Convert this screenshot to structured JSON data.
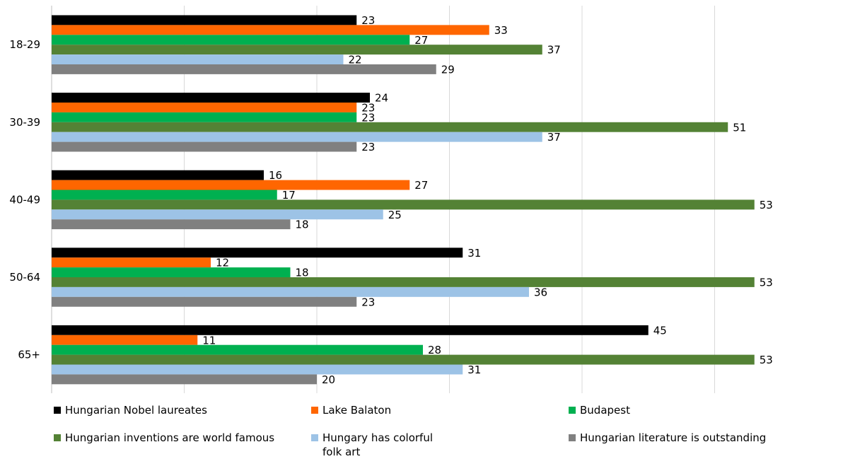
{
  "chart_data": {
    "type": "bar",
    "orientation": "horizontal",
    "categories": [
      "18-29",
      "30-39",
      "40-49",
      "50-64",
      "65+"
    ],
    "series": [
      {
        "name": "Hungarian Nobel laureates",
        "color": "#000000",
        "values": [
          23,
          24,
          16,
          31,
          45
        ]
      },
      {
        "name": "Lake Balaton",
        "color": "#ff6600",
        "values": [
          33,
          23,
          27,
          12,
          11
        ]
      },
      {
        "name": "Budapest",
        "color": "#00b050",
        "values": [
          27,
          23,
          17,
          18,
          28
        ]
      },
      {
        "name": "Hungarian inventions are world famous",
        "color": "#548235",
        "values": [
          37,
          51,
          53,
          53,
          53
        ]
      },
      {
        "name": "Hungary has colorful\nfolk art",
        "color": "#9dc3e6",
        "values": [
          22,
          37,
          25,
          36,
          31
        ]
      },
      {
        "name": "Hungarian literature is outstanding",
        "color": "#808080",
        "values": [
          29,
          23,
          18,
          23,
          20
        ]
      }
    ],
    "xlim": [
      0,
      60
    ],
    "grid": true,
    "data_labels": true,
    "legend_position": "bottom"
  }
}
